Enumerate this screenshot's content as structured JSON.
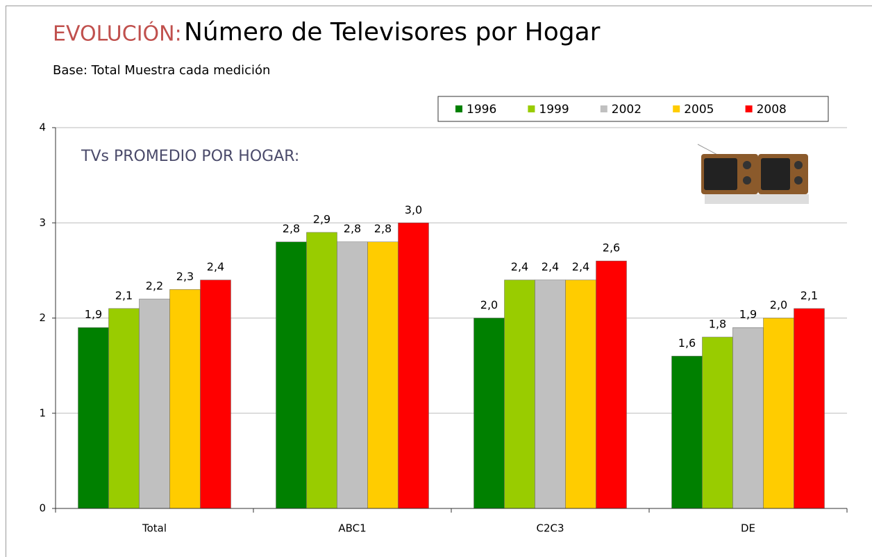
{
  "chart_data": {
    "type": "bar",
    "title_prefix": "EVOLUCIÓN:",
    "title": "Número de Televisores por Hogar",
    "subtitle": "Base: Total Muestra cada medición",
    "annotation": "TVs PROMEDIO POR HOGAR:",
    "categories": [
      "Total",
      "ABC1",
      "C2C3",
      "DE"
    ],
    "series": [
      {
        "name": "1996",
        "color": "#008000",
        "values": [
          1.9,
          2.8,
          2.0,
          1.6
        ],
        "value_labels": [
          "1,9",
          "2,8",
          "2,0",
          "1,6"
        ]
      },
      {
        "name": "1999",
        "color": "#99cc00",
        "values": [
          2.1,
          2.9,
          2.4,
          1.8
        ],
        "value_labels": [
          "2,1",
          "2,9",
          "2,4",
          "1,8"
        ]
      },
      {
        "name": "2002",
        "color": "#c0c0c0",
        "values": [
          2.2,
          2.8,
          2.4,
          1.9
        ],
        "value_labels": [
          "2,2",
          "2,8",
          "2,4",
          "1,9"
        ]
      },
      {
        "name": "2005",
        "color": "#ffcc00",
        "values": [
          2.3,
          2.8,
          2.4,
          2.0
        ],
        "value_labels": [
          "2,3",
          "2,8",
          "2,4",
          "2,0"
        ]
      },
      {
        "name": "2008",
        "color": "#ff0000",
        "values": [
          2.4,
          3.0,
          2.6,
          2.1
        ],
        "value_labels": [
          "2,4",
          "3,0",
          "2,6",
          "2,1"
        ]
      }
    ],
    "ylim": [
      0,
      4
    ],
    "yticks": [
      0,
      1,
      2,
      3,
      4
    ],
    "grid": true,
    "legend": "top-right"
  }
}
